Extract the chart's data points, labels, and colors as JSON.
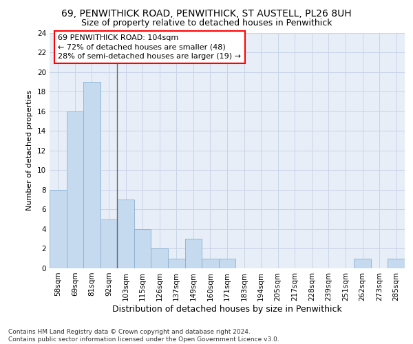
{
  "title1": "69, PENWITHICK ROAD, PENWITHICK, ST AUSTELL, PL26 8UH",
  "title2": "Size of property relative to detached houses in Penwithick",
  "xlabel": "Distribution of detached houses by size in Penwithick",
  "ylabel": "Number of detached properties",
  "categories": [
    "58sqm",
    "69sqm",
    "81sqm",
    "92sqm",
    "103sqm",
    "115sqm",
    "126sqm",
    "137sqm",
    "149sqm",
    "160sqm",
    "171sqm",
    "183sqm",
    "194sqm",
    "205sqm",
    "217sqm",
    "228sqm",
    "239sqm",
    "251sqm",
    "262sqm",
    "273sqm",
    "285sqm"
  ],
  "values": [
    8,
    16,
    19,
    5,
    7,
    4,
    2,
    1,
    3,
    1,
    1,
    0,
    0,
    0,
    0,
    0,
    0,
    0,
    1,
    0,
    1
  ],
  "bar_color": "#c5d9ef",
  "bar_edge_color": "#8ab0d4",
  "vline_index": 3.5,
  "vline_color": "#666666",
  "annotation_line1": "69 PENWITHICK ROAD: 104sqm",
  "annotation_line2": "← 72% of detached houses are smaller (48)",
  "annotation_line3": "28% of semi-detached houses are larger (19) →",
  "annotation_box_color": "white",
  "annotation_box_edge_color": "red",
  "ylim": [
    0,
    24
  ],
  "yticks": [
    0,
    2,
    4,
    6,
    8,
    10,
    12,
    14,
    16,
    18,
    20,
    22,
    24
  ],
  "grid_color": "#c8d4e8",
  "background_color": "#e8eef8",
  "footer_line1": "Contains HM Land Registry data © Crown copyright and database right 2024.",
  "footer_line2": "Contains public sector information licensed under the Open Government Licence v3.0.",
  "title1_fontsize": 10,
  "title2_fontsize": 9,
  "xlabel_fontsize": 9,
  "ylabel_fontsize": 8,
  "tick_fontsize": 7.5,
  "annotation_fontsize": 8,
  "footer_fontsize": 6.5
}
